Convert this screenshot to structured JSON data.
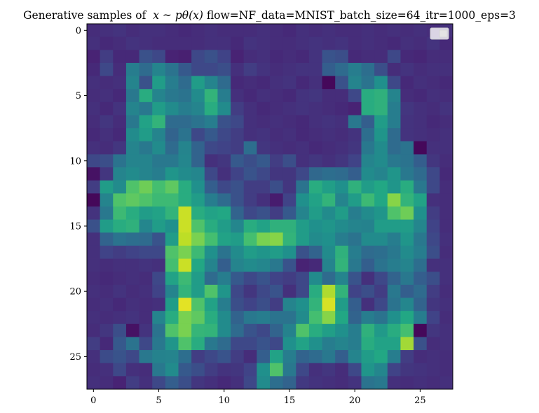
{
  "chart_data": {
    "type": "heatmap",
    "title": {
      "prefix": "Generative samples of  ",
      "math": "x ~ pθ(x)",
      "suffix": " flow=NF_data=MNIST_batch_size=64_itr=1000_eps=3"
    },
    "xlabel": "",
    "ylabel": "",
    "x_ticks": [
      "0",
      "5",
      "10",
      "15",
      "20",
      "25"
    ],
    "y_ticks": [
      "0",
      "5",
      "10",
      "15",
      "20",
      "25"
    ],
    "xlim": [
      -0.5,
      27.5
    ],
    "ylim": [
      27.5,
      -0.5
    ],
    "colormap": "viridis",
    "value_range": [
      0,
      1
    ],
    "legend": {
      "placement": "top-right",
      "entries": []
    },
    "grid": false,
    "rows": 28,
    "cols": 28,
    "values": [
      [
        0.13,
        0.14,
        0.15,
        0.13,
        0.14,
        0.14,
        0.13,
        0.12,
        0.13,
        0.14,
        0.13,
        0.13,
        0.13,
        0.14,
        0.13,
        0.12,
        0.14,
        0.13,
        0.14,
        0.13,
        0.13,
        0.14,
        0.13,
        0.14,
        0.13,
        0.14,
        0.13,
        0.14
      ],
      [
        0.14,
        0.12,
        0.13,
        0.15,
        0.14,
        0.13,
        0.13,
        0.13,
        0.13,
        0.14,
        0.14,
        0.12,
        0.15,
        0.14,
        0.13,
        0.13,
        0.14,
        0.15,
        0.14,
        0.15,
        0.13,
        0.14,
        0.13,
        0.12,
        0.14,
        0.13,
        0.15,
        0.12
      ],
      [
        0.1,
        0.18,
        0.12,
        0.12,
        0.25,
        0.22,
        0.1,
        0.09,
        0.22,
        0.25,
        0.2,
        0.1,
        0.13,
        0.14,
        0.12,
        0.13,
        0.12,
        0.15,
        0.26,
        0.24,
        0.12,
        0.13,
        0.13,
        0.22,
        0.12,
        0.11,
        0.13,
        0.13
      ],
      [
        0.12,
        0.22,
        0.13,
        0.42,
        0.35,
        0.45,
        0.38,
        0.28,
        0.22,
        0.22,
        0.24,
        0.14,
        0.18,
        0.15,
        0.13,
        0.14,
        0.15,
        0.15,
        0.3,
        0.35,
        0.42,
        0.36,
        0.24,
        0.13,
        0.15,
        0.13,
        0.14,
        0.14
      ],
      [
        0.14,
        0.13,
        0.14,
        0.45,
        0.25,
        0.55,
        0.42,
        0.35,
        0.55,
        0.45,
        0.35,
        0.12,
        0.13,
        0.12,
        0.14,
        0.15,
        0.12,
        0.14,
        0.02,
        0.25,
        0.45,
        0.38,
        0.5,
        0.22,
        0.12,
        0.14,
        0.13,
        0.12
      ],
      [
        0.13,
        0.14,
        0.12,
        0.4,
        0.62,
        0.45,
        0.4,
        0.38,
        0.48,
        0.65,
        0.42,
        0.14,
        0.12,
        0.14,
        0.13,
        0.12,
        0.15,
        0.16,
        0.13,
        0.13,
        0.22,
        0.62,
        0.64,
        0.45,
        0.13,
        0.12,
        0.14,
        0.13
      ],
      [
        0.14,
        0.12,
        0.15,
        0.45,
        0.4,
        0.55,
        0.48,
        0.42,
        0.45,
        0.62,
        0.48,
        0.18,
        0.14,
        0.12,
        0.13,
        0.14,
        0.15,
        0.14,
        0.13,
        0.12,
        0.1,
        0.62,
        0.64,
        0.42,
        0.16,
        0.14,
        0.13,
        0.15
      ],
      [
        0.13,
        0.16,
        0.13,
        0.4,
        0.58,
        0.65,
        0.35,
        0.35,
        0.38,
        0.42,
        0.25,
        0.22,
        0.14,
        0.13,
        0.14,
        0.13,
        0.12,
        0.14,
        0.15,
        0.14,
        0.4,
        0.3,
        0.55,
        0.42,
        0.15,
        0.14,
        0.12,
        0.13
      ],
      [
        0.12,
        0.14,
        0.12,
        0.48,
        0.55,
        0.45,
        0.32,
        0.38,
        0.22,
        0.28,
        0.22,
        0.18,
        0.14,
        0.15,
        0.13,
        0.14,
        0.12,
        0.13,
        0.14,
        0.13,
        0.15,
        0.36,
        0.52,
        0.35,
        0.15,
        0.14,
        0.13,
        0.14
      ],
      [
        0.14,
        0.13,
        0.16,
        0.45,
        0.4,
        0.48,
        0.35,
        0.45,
        0.32,
        0.22,
        0.2,
        0.18,
        0.36,
        0.16,
        0.14,
        0.13,
        0.14,
        0.12,
        0.13,
        0.14,
        0.16,
        0.4,
        0.48,
        0.35,
        0.38,
        0.02,
        0.14,
        0.14
      ],
      [
        0.22,
        0.24,
        0.38,
        0.45,
        0.45,
        0.4,
        0.4,
        0.46,
        0.32,
        0.14,
        0.16,
        0.28,
        0.24,
        0.28,
        0.18,
        0.24,
        0.14,
        0.16,
        0.14,
        0.16,
        0.2,
        0.45,
        0.48,
        0.4,
        0.38,
        0.3,
        0.16,
        0.13
      ],
      [
        0.05,
        0.16,
        0.45,
        0.48,
        0.45,
        0.42,
        0.52,
        0.48,
        0.46,
        0.22,
        0.14,
        0.2,
        0.26,
        0.22,
        0.16,
        0.16,
        0.22,
        0.34,
        0.36,
        0.35,
        0.3,
        0.48,
        0.45,
        0.52,
        0.4,
        0.35,
        0.22,
        0.12
      ],
      [
        0.18,
        0.55,
        0.48,
        0.72,
        0.78,
        0.7,
        0.75,
        0.62,
        0.5,
        0.3,
        0.22,
        0.25,
        0.18,
        0.18,
        0.24,
        0.16,
        0.38,
        0.62,
        0.56,
        0.5,
        0.64,
        0.55,
        0.6,
        0.52,
        0.62,
        0.4,
        0.22,
        0.13
      ],
      [
        0.02,
        0.45,
        0.72,
        0.75,
        0.72,
        0.68,
        0.68,
        0.62,
        0.55,
        0.42,
        0.35,
        0.25,
        0.18,
        0.14,
        0.08,
        0.2,
        0.5,
        0.58,
        0.65,
        0.45,
        0.55,
        0.68,
        0.6,
        0.82,
        0.65,
        0.58,
        0.14,
        0.13
      ],
      [
        0.15,
        0.4,
        0.68,
        0.62,
        0.55,
        0.58,
        0.65,
        0.92,
        0.62,
        0.58,
        0.6,
        0.32,
        0.22,
        0.25,
        0.18,
        0.28,
        0.45,
        0.55,
        0.48,
        0.55,
        0.42,
        0.48,
        0.52,
        0.72,
        0.78,
        0.5,
        0.18,
        0.13
      ],
      [
        0.25,
        0.55,
        0.62,
        0.64,
        0.46,
        0.55,
        0.5,
        0.92,
        0.72,
        0.62,
        0.55,
        0.46,
        0.62,
        0.58,
        0.64,
        0.64,
        0.55,
        0.5,
        0.52,
        0.48,
        0.45,
        0.44,
        0.55,
        0.55,
        0.55,
        0.46,
        0.2,
        0.13
      ],
      [
        0.14,
        0.32,
        0.38,
        0.36,
        0.35,
        0.26,
        0.55,
        0.9,
        0.8,
        0.7,
        0.58,
        0.55,
        0.7,
        0.8,
        0.82,
        0.65,
        0.55,
        0.48,
        0.5,
        0.42,
        0.38,
        0.48,
        0.48,
        0.42,
        0.52,
        0.4,
        0.22,
        0.14
      ],
      [
        0.14,
        0.2,
        0.18,
        0.2,
        0.22,
        0.22,
        0.72,
        0.8,
        0.68,
        0.5,
        0.38,
        0.48,
        0.55,
        0.52,
        0.55,
        0.5,
        0.25,
        0.32,
        0.48,
        0.64,
        0.42,
        0.35,
        0.36,
        0.4,
        0.48,
        0.42,
        0.24,
        0.13
      ],
      [
        0.14,
        0.13,
        0.14,
        0.14,
        0.15,
        0.14,
        0.7,
        0.92,
        0.6,
        0.45,
        0.3,
        0.45,
        0.48,
        0.46,
        0.4,
        0.26,
        0.1,
        0.12,
        0.45,
        0.65,
        0.4,
        0.3,
        0.38,
        0.42,
        0.45,
        0.36,
        0.14,
        0.14
      ],
      [
        0.13,
        0.12,
        0.13,
        0.14,
        0.13,
        0.22,
        0.58,
        0.68,
        0.55,
        0.35,
        0.42,
        0.28,
        0.22,
        0.26,
        0.2,
        0.18,
        0.22,
        0.48,
        0.35,
        0.45,
        0.26,
        0.14,
        0.22,
        0.32,
        0.4,
        0.3,
        0.24,
        0.14
      ],
      [
        0.14,
        0.13,
        0.15,
        0.13,
        0.14,
        0.2,
        0.45,
        0.65,
        0.55,
        0.72,
        0.52,
        0.22,
        0.16,
        0.22,
        0.26,
        0.14,
        0.22,
        0.62,
        0.88,
        0.65,
        0.2,
        0.24,
        0.18,
        0.4,
        0.3,
        0.35,
        0.18,
        0.13
      ],
      [
        0.13,
        0.14,
        0.12,
        0.14,
        0.13,
        0.14,
        0.55,
        0.96,
        0.72,
        0.58,
        0.42,
        0.24,
        0.2,
        0.24,
        0.18,
        0.45,
        0.5,
        0.65,
        0.94,
        0.55,
        0.3,
        0.14,
        0.22,
        0.38,
        0.46,
        0.32,
        0.16,
        0.14
      ],
      [
        0.14,
        0.13,
        0.14,
        0.15,
        0.13,
        0.45,
        0.62,
        0.8,
        0.75,
        0.62,
        0.48,
        0.32,
        0.4,
        0.42,
        0.38,
        0.38,
        0.48,
        0.7,
        0.82,
        0.6,
        0.32,
        0.42,
        0.38,
        0.5,
        0.6,
        0.42,
        0.2,
        0.13
      ],
      [
        0.13,
        0.16,
        0.24,
        0.05,
        0.15,
        0.38,
        0.72,
        0.8,
        0.66,
        0.65,
        0.48,
        0.35,
        0.26,
        0.22,
        0.32,
        0.44,
        0.72,
        0.62,
        0.56,
        0.5,
        0.42,
        0.64,
        0.54,
        0.62,
        0.7,
        0.02,
        0.16,
        0.14
      ],
      [
        0.18,
        0.12,
        0.28,
        0.38,
        0.22,
        0.4,
        0.52,
        0.72,
        0.62,
        0.4,
        0.35,
        0.22,
        0.22,
        0.26,
        0.22,
        0.5,
        0.58,
        0.5,
        0.42,
        0.45,
        0.42,
        0.62,
        0.58,
        0.58,
        0.86,
        0.25,
        0.13,
        0.14
      ],
      [
        0.14,
        0.23,
        0.26,
        0.22,
        0.4,
        0.44,
        0.45,
        0.36,
        0.18,
        0.22,
        0.26,
        0.18,
        0.13,
        0.3,
        0.58,
        0.42,
        0.32,
        0.35,
        0.4,
        0.3,
        0.45,
        0.55,
        0.6,
        0.42,
        0.18,
        0.13,
        0.14,
        0.13
      ],
      [
        0.13,
        0.14,
        0.22,
        0.14,
        0.13,
        0.4,
        0.48,
        0.28,
        0.24,
        0.18,
        0.15,
        0.16,
        0.2,
        0.5,
        0.72,
        0.4,
        0.22,
        0.14,
        0.16,
        0.13,
        0.22,
        0.52,
        0.46,
        0.2,
        0.16,
        0.15,
        0.14,
        0.13
      ],
      [
        0.14,
        0.13,
        0.1,
        0.18,
        0.14,
        0.22,
        0.3,
        0.24,
        0.16,
        0.14,
        0.12,
        0.14,
        0.22,
        0.48,
        0.36,
        0.32,
        0.17,
        0.15,
        0.14,
        0.13,
        0.15,
        0.38,
        0.4,
        0.14,
        0.13,
        0.14,
        0.13,
        0.14
      ]
    ]
  }
}
